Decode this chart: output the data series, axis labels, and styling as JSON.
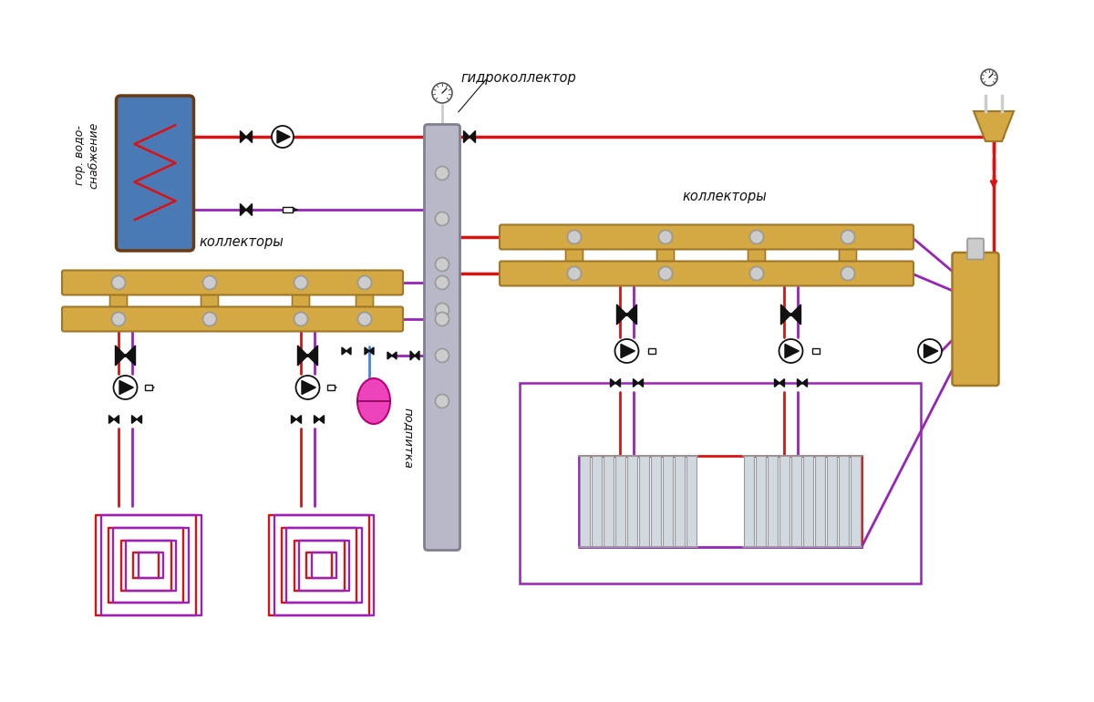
{
  "bg_color": "#ffffff",
  "red": "#dd1111",
  "purple": "#9922bb",
  "blue": "#4488dd",
  "gold": "#d4a843",
  "dark_gold": "#a07828",
  "gray": "#999999",
  "light_gray": "#cccccc",
  "dark_gray": "#555555",
  "brown": "#6b3a10",
  "boiler_blue": "#4a7ab5",
  "pink": "#ee44bb",
  "black": "#111111",
  "boiler_label": "гор. водо-\nснабжение",
  "hydro_label": "гидроколлектор",
  "collector_label_right": "коллекторы",
  "collector_label_left": "коллекторы",
  "feed_label": "подпитка"
}
